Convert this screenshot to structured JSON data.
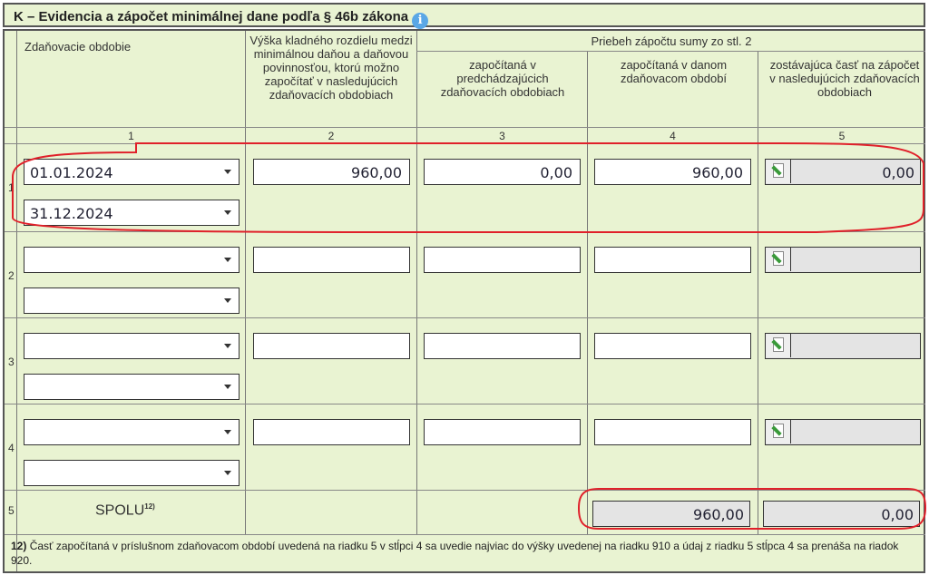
{
  "section": {
    "title": "K – Evidencia a zápočet minimálnej dane podľa § 46b zákona",
    "info_icon": "info-icon"
  },
  "headers": {
    "col1": "Zdaňovacie obdobie",
    "col2": "Výška kladného rozdielu medzi minimálnou daňou a daňovou povinnosťou, ktorú možno započítať v nasledujúcich zdaňovacích obdobiach",
    "group": "Priebeh zápočtu sumy zo stl. 2",
    "col3": "započítaná v predchádzajúcich zdaňovacích obdobiach",
    "col4": "započítaná v danom zdaňovacom období",
    "col5": "zostávajúca časť na zápočet v nasledujúcich zdaňovacích obdobiach",
    "numbers": [
      "1",
      "2",
      "3",
      "4",
      "5"
    ]
  },
  "rows": [
    {
      "num": "1",
      "from": "01.01.2024",
      "to": "31.12.2024",
      "col2": "960,00",
      "col3": "0,00",
      "col4": "960,00",
      "col5": "0,00"
    },
    {
      "num": "2",
      "from": "",
      "to": "",
      "col2": "",
      "col3": "",
      "col4": "",
      "col5": ""
    },
    {
      "num": "3",
      "from": "",
      "to": "",
      "col2": "",
      "col3": "",
      "col4": "",
      "col5": ""
    },
    {
      "num": "4",
      "from": "",
      "to": "",
      "col2": "",
      "col3": "",
      "col4": "",
      "col5": ""
    }
  ],
  "total": {
    "num": "5",
    "label": "SPOLU",
    "footnote_ref": "12)",
    "col4": "960,00",
    "col5": "0,00"
  },
  "footnote": {
    "ref": "12)",
    "text": "Časť započítaná v príslušnom zdaňovacom období uvedená na riadku 5 v stĺpci 4 sa uvedie najviac do výšky uvedenej na riadku 910 a údaj z riadku 5 stĺpca 4 sa prenáša na riadok 920."
  },
  "colors": {
    "background": "#e9f3d2",
    "highlight": "#e0202a",
    "readonly": "#e4e4e4"
  }
}
